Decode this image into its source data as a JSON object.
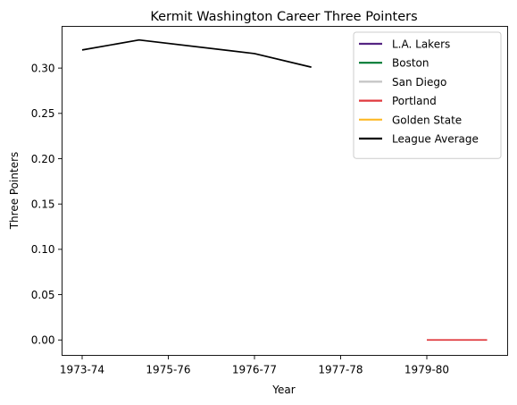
{
  "chart_data": {
    "type": "line",
    "title": "Kermit Washington Career Three Pointers",
    "xlabel": "Year",
    "ylabel": "Three Pointers",
    "x_ticks": [
      "1973-74",
      "1975-76",
      "1976-77",
      "1977-78",
      "1979-80"
    ],
    "y_ticks": [
      "0.00",
      "0.05",
      "0.10",
      "0.15",
      "0.20",
      "0.25",
      "0.30"
    ],
    "ylim": [
      -0.017,
      0.346
    ],
    "grid": false,
    "legend_position": "top-right",
    "series": [
      {
        "name": "L.A. Lakers",
        "color": "#552583",
        "points": []
      },
      {
        "name": "Boston",
        "color": "#007A33",
        "points": []
      },
      {
        "name": "San Diego",
        "color": "#C4C4C4",
        "points": []
      },
      {
        "name": "Portland",
        "color": "#E03A3E",
        "points": [
          [
            4.0,
            0.0
          ],
          [
            4.7,
            0.0
          ]
        ]
      },
      {
        "name": "Golden State",
        "color": "#FDB927",
        "points": []
      },
      {
        "name": "League Average",
        "color": "#000000",
        "points": [
          [
            0.0,
            0.32
          ],
          [
            0.66,
            0.331
          ],
          [
            2.0,
            0.316
          ],
          [
            2.66,
            0.301
          ]
        ]
      }
    ]
  }
}
